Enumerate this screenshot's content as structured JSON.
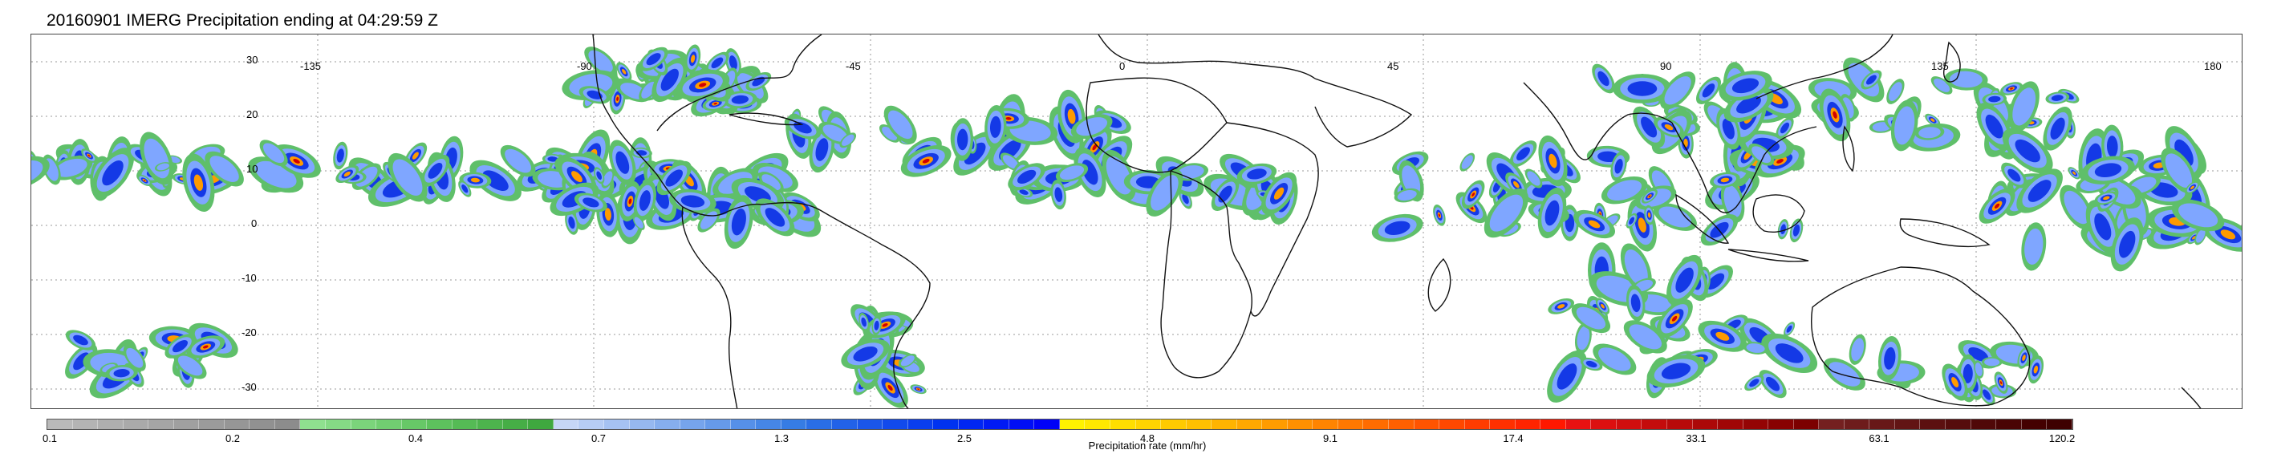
{
  "title": "20160901 IMERG Precipitation ending at 04:29:59 Z",
  "map": {
    "longitude_labels": [
      "-135",
      "-90",
      "-45",
      "0",
      "45",
      "90",
      "135",
      "180"
    ],
    "latitude_labels": [
      "30",
      "20",
      "10",
      "0",
      "-10",
      "-20",
      "-30"
    ],
    "gridlines": "dotted",
    "coastlines": true
  },
  "colorbar": {
    "label": "Precipitation rate (mm/hr)",
    "tick_labels": [
      "0.1",
      "0.2",
      "0.4",
      "0.7",
      "1.3",
      "2.5",
      "4.8",
      "9.1",
      "17.4",
      "33.1",
      "63.1",
      "120.2"
    ],
    "colors": [
      "#b9b9b9",
      "#b4b4b4",
      "#afafaf",
      "#aaaaaa",
      "#a5a5a5",
      "#a0a0a0",
      "#9b9b9b",
      "#969696",
      "#919191",
      "#8c8c8c",
      "#8fe08f",
      "#85da85",
      "#7bd47b",
      "#71ce71",
      "#67c867",
      "#5dc25d",
      "#55bb55",
      "#4db44d",
      "#46ae46",
      "#3fa83f",
      "#c6d6f6",
      "#b6ccf4",
      "#a6c2f2",
      "#96b8f0",
      "#86aeee",
      "#76a4ec",
      "#669aea",
      "#5690e8",
      "#4686e6",
      "#367ce4",
      "#2a6ee6",
      "#2262e8",
      "#1a56ea",
      "#124aec",
      "#0a3eee",
      "#0032f0",
      "#0026f2",
      "#001af4",
      "#000ef6",
      "#0002f8",
      "#fff200",
      "#ffe800",
      "#ffde00",
      "#ffd400",
      "#ffca00",
      "#ffc000",
      "#ffb400",
      "#ffa800",
      "#ff9c00",
      "#ff9000",
      "#ff8400",
      "#ff7800",
      "#ff6c00",
      "#ff6000",
      "#ff5400",
      "#ff4800",
      "#ff3c00",
      "#ff3000",
      "#ff2400",
      "#ff1800",
      "#e81212",
      "#dc1010",
      "#d00e0e",
      "#c40c0c",
      "#b80a0a",
      "#ac0808",
      "#a00606",
      "#940404",
      "#880202",
      "#7c0000",
      "#742020",
      "#6e1c1c",
      "#681818",
      "#621414",
      "#5c1010",
      "#560c0c",
      "#500808",
      "#4a0404",
      "#440000",
      "#3e0000"
    ]
  },
  "precip_colors": {
    "light": "#5fbf6a",
    "moderate": "#7fa6ff",
    "heavy": "#1439e6",
    "intense": "#ff9a00",
    "extreme": "#d20000"
  }
}
